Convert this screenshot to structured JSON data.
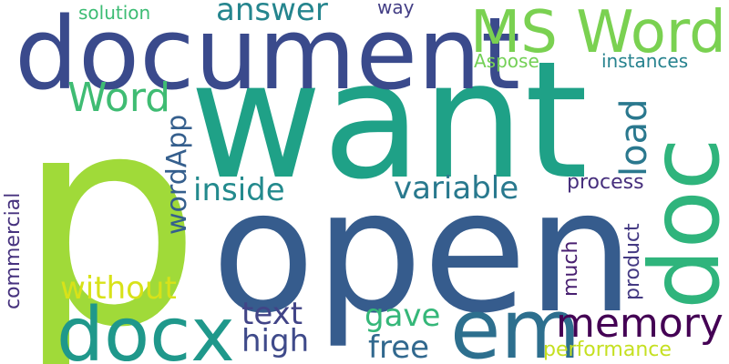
{
  "word_cloud": {
    "words": [
      {
        "text": "p",
        "color": "#a0da39"
      },
      {
        "text": "want",
        "color": "#1fa187"
      },
      {
        "text": "open",
        "color": "#365c8d"
      },
      {
        "text": "document",
        "color": "#3a4a8c"
      },
      {
        "text": "doc",
        "color": "#2fb47c"
      },
      {
        "text": "MS Word",
        "color": "#7ad151"
      },
      {
        "text": "docx",
        "color": "#1f988b"
      },
      {
        "text": "em",
        "color": "#2d6f8e"
      },
      {
        "text": "memory",
        "color": "#440154"
      },
      {
        "text": "Word",
        "color": "#3fbc73"
      },
      {
        "text": "answer",
        "color": "#25858e"
      },
      {
        "text": "solution",
        "color": "#3dbc74"
      },
      {
        "text": "way",
        "color": "#433e85"
      },
      {
        "text": "Aspose",
        "color": "#73d056"
      },
      {
        "text": "instances",
        "color": "#26828e"
      },
      {
        "text": "load",
        "color": "#2a788e"
      },
      {
        "text": "wordApp",
        "color": "#355f8d"
      },
      {
        "text": "inside",
        "color": "#238a8d"
      },
      {
        "text": "variable",
        "color": "#29798e"
      },
      {
        "text": "process",
        "color": "#472f7d"
      },
      {
        "text": "commercial",
        "color": "#46327e"
      },
      {
        "text": "without",
        "color": "#d8e219"
      },
      {
        "text": "text",
        "color": "#414487"
      },
      {
        "text": "high",
        "color": "#3f4a8a"
      },
      {
        "text": "gave",
        "color": "#35b779"
      },
      {
        "text": "free",
        "color": "#31688e"
      },
      {
        "text": "much",
        "color": "#481f70"
      },
      {
        "text": "product",
        "color": "#443a83"
      },
      {
        "text": "performance",
        "color": "#c5e021"
      }
    ]
  }
}
